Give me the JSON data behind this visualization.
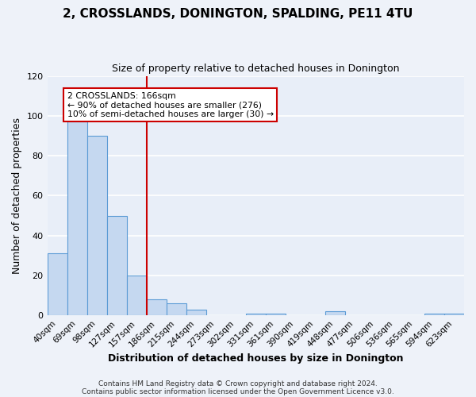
{
  "title": "2, CROSSLANDS, DONINGTON, SPALDING, PE11 4TU",
  "subtitle": "Size of property relative to detached houses in Donington",
  "xlabel": "Distribution of detached houses by size in Donington",
  "ylabel": "Number of detached properties",
  "bar_labels": [
    "40sqm",
    "69sqm",
    "98sqm",
    "127sqm",
    "157sqm",
    "186sqm",
    "215sqm",
    "244sqm",
    "273sqm",
    "302sqm",
    "331sqm",
    "361sqm",
    "390sqm",
    "419sqm",
    "448sqm",
    "477sqm",
    "506sqm",
    "536sqm",
    "565sqm",
    "594sqm",
    "623sqm"
  ],
  "bar_values": [
    31,
    97,
    90,
    50,
    20,
    8,
    6,
    3,
    0,
    0,
    1,
    1,
    0,
    0,
    2,
    0,
    0,
    0,
    0,
    1,
    1
  ],
  "bar_color": "#c5d8f0",
  "bar_edge_color": "#5b9bd5",
  "ylim": [
    0,
    120
  ],
  "yticks": [
    0,
    20,
    40,
    60,
    80,
    100,
    120
  ],
  "vline_x": 4.5,
  "vline_color": "#cc0000",
  "annotation_title": "2 CROSSLANDS: 166sqm",
  "annotation_line1": "← 90% of detached houses are smaller (276)",
  "annotation_line2": "10% of semi-detached houses are larger (30) →",
  "annotation_box_color": "#ffffff",
  "annotation_box_edge": "#cc0000",
  "footer1": "Contains HM Land Registry data © Crown copyright and database right 2024.",
  "footer2": "Contains public sector information licensed under the Open Government Licence v3.0.",
  "bg_color": "#eef2f9",
  "plot_bg_color": "#e8eef8",
  "grid_color": "#ffffff",
  "title_fontsize": 11,
  "subtitle_fontsize": 9
}
